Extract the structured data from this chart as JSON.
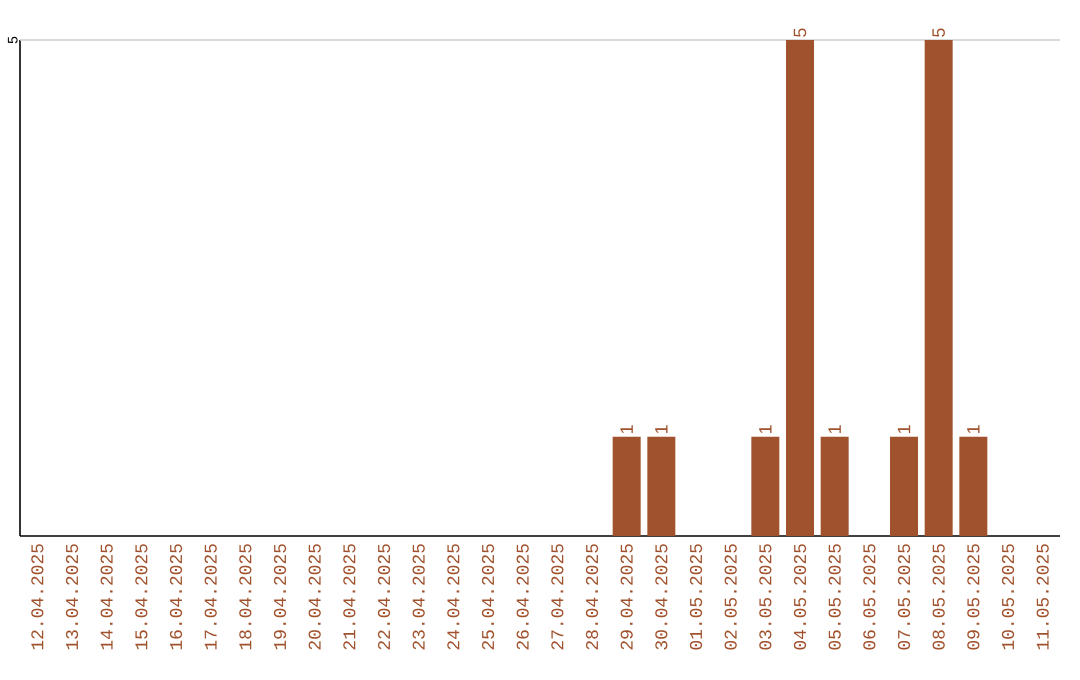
{
  "chart_data": {
    "type": "bar",
    "categories": [
      "12.04.2025",
      "13.04.2025",
      "14.04.2025",
      "15.04.2025",
      "16.04.2025",
      "17.04.2025",
      "18.04.2025",
      "19.04.2025",
      "20.04.2025",
      "21.04.2025",
      "22.04.2025",
      "23.04.2025",
      "24.04.2025",
      "25.04.2025",
      "26.04.2025",
      "27.04.2025",
      "28.04.2025",
      "29.04.2025",
      "30.04.2025",
      "01.05.2025",
      "02.05.2025",
      "03.05.2025",
      "04.05.2025",
      "05.05.2025",
      "06.05.2025",
      "07.05.2025",
      "08.05.2025",
      "09.05.2025",
      "10.05.2025",
      "11.05.2025"
    ],
    "values": [
      null,
      null,
      null,
      null,
      null,
      null,
      null,
      null,
      null,
      null,
      null,
      null,
      null,
      null,
      null,
      null,
      null,
      1,
      1,
      null,
      null,
      1,
      5,
      1,
      null,
      1,
      5,
      1,
      null,
      null
    ],
    "data_labels": true,
    "color": "#a0522d",
    "ylim": [
      0,
      5
    ],
    "ref_lines": [
      {
        "axis": "y",
        "value": 5,
        "label": "5",
        "color": "#cccccc"
      }
    ]
  }
}
